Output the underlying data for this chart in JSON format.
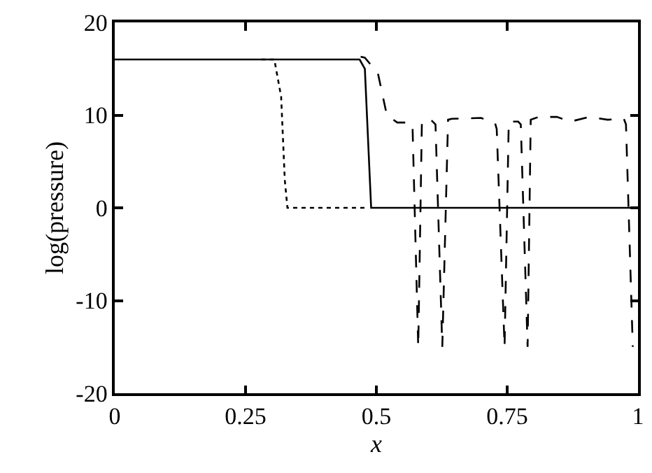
{
  "chart_data": {
    "type": "line",
    "xlabel": "x",
    "ylabel": "log(pressure)",
    "xlim": [
      0,
      1
    ],
    "ylim": [
      -20,
      20
    ],
    "xticks": [
      0,
      0.25,
      0.5,
      0.75,
      1
    ],
    "yticks": [
      -20,
      -10,
      0,
      10,
      20
    ],
    "marker": "none",
    "series": [
      {
        "color": "#000000",
        "line_style": "solid",
        "x": [
          0,
          0.468,
          0.478,
          0.49,
          1
        ],
        "values": [
          16,
          16,
          15,
          0,
          0
        ]
      },
      {
        "color": "#000000",
        "line_style": "dotted",
        "x": [
          0.28,
          0.305,
          0.318,
          0.325,
          0.33,
          0.48
        ],
        "values": [
          16,
          16,
          12,
          3,
          0,
          0
        ]
      },
      {
        "color": "#000000",
        "line_style": "dashed",
        "x": [
          0.47,
          0.478,
          0.503,
          0.52,
          0.54,
          0.565,
          0.569,
          0.58,
          0.587,
          0.604,
          0.613,
          0.626,
          0.637,
          0.644,
          0.7,
          0.727,
          0.73,
          0.745,
          0.753,
          0.771,
          0.776,
          0.789,
          0.795,
          0.81,
          0.845,
          0.871,
          0.907,
          0.942,
          0.973,
          0.977,
          0.99
        ],
        "values": [
          16.3,
          16.2,
          14.5,
          10,
          9.2,
          9.2,
          9,
          -15,
          9.3,
          9.5,
          9,
          -15,
          9.5,
          9.6,
          9.7,
          9.1,
          8.5,
          -15,
          9.3,
          9.3,
          9,
          -15,
          9.5,
          9.8,
          9.8,
          9.3,
          9.8,
          9.5,
          9.6,
          9,
          -15
        ]
      }
    ]
  }
}
